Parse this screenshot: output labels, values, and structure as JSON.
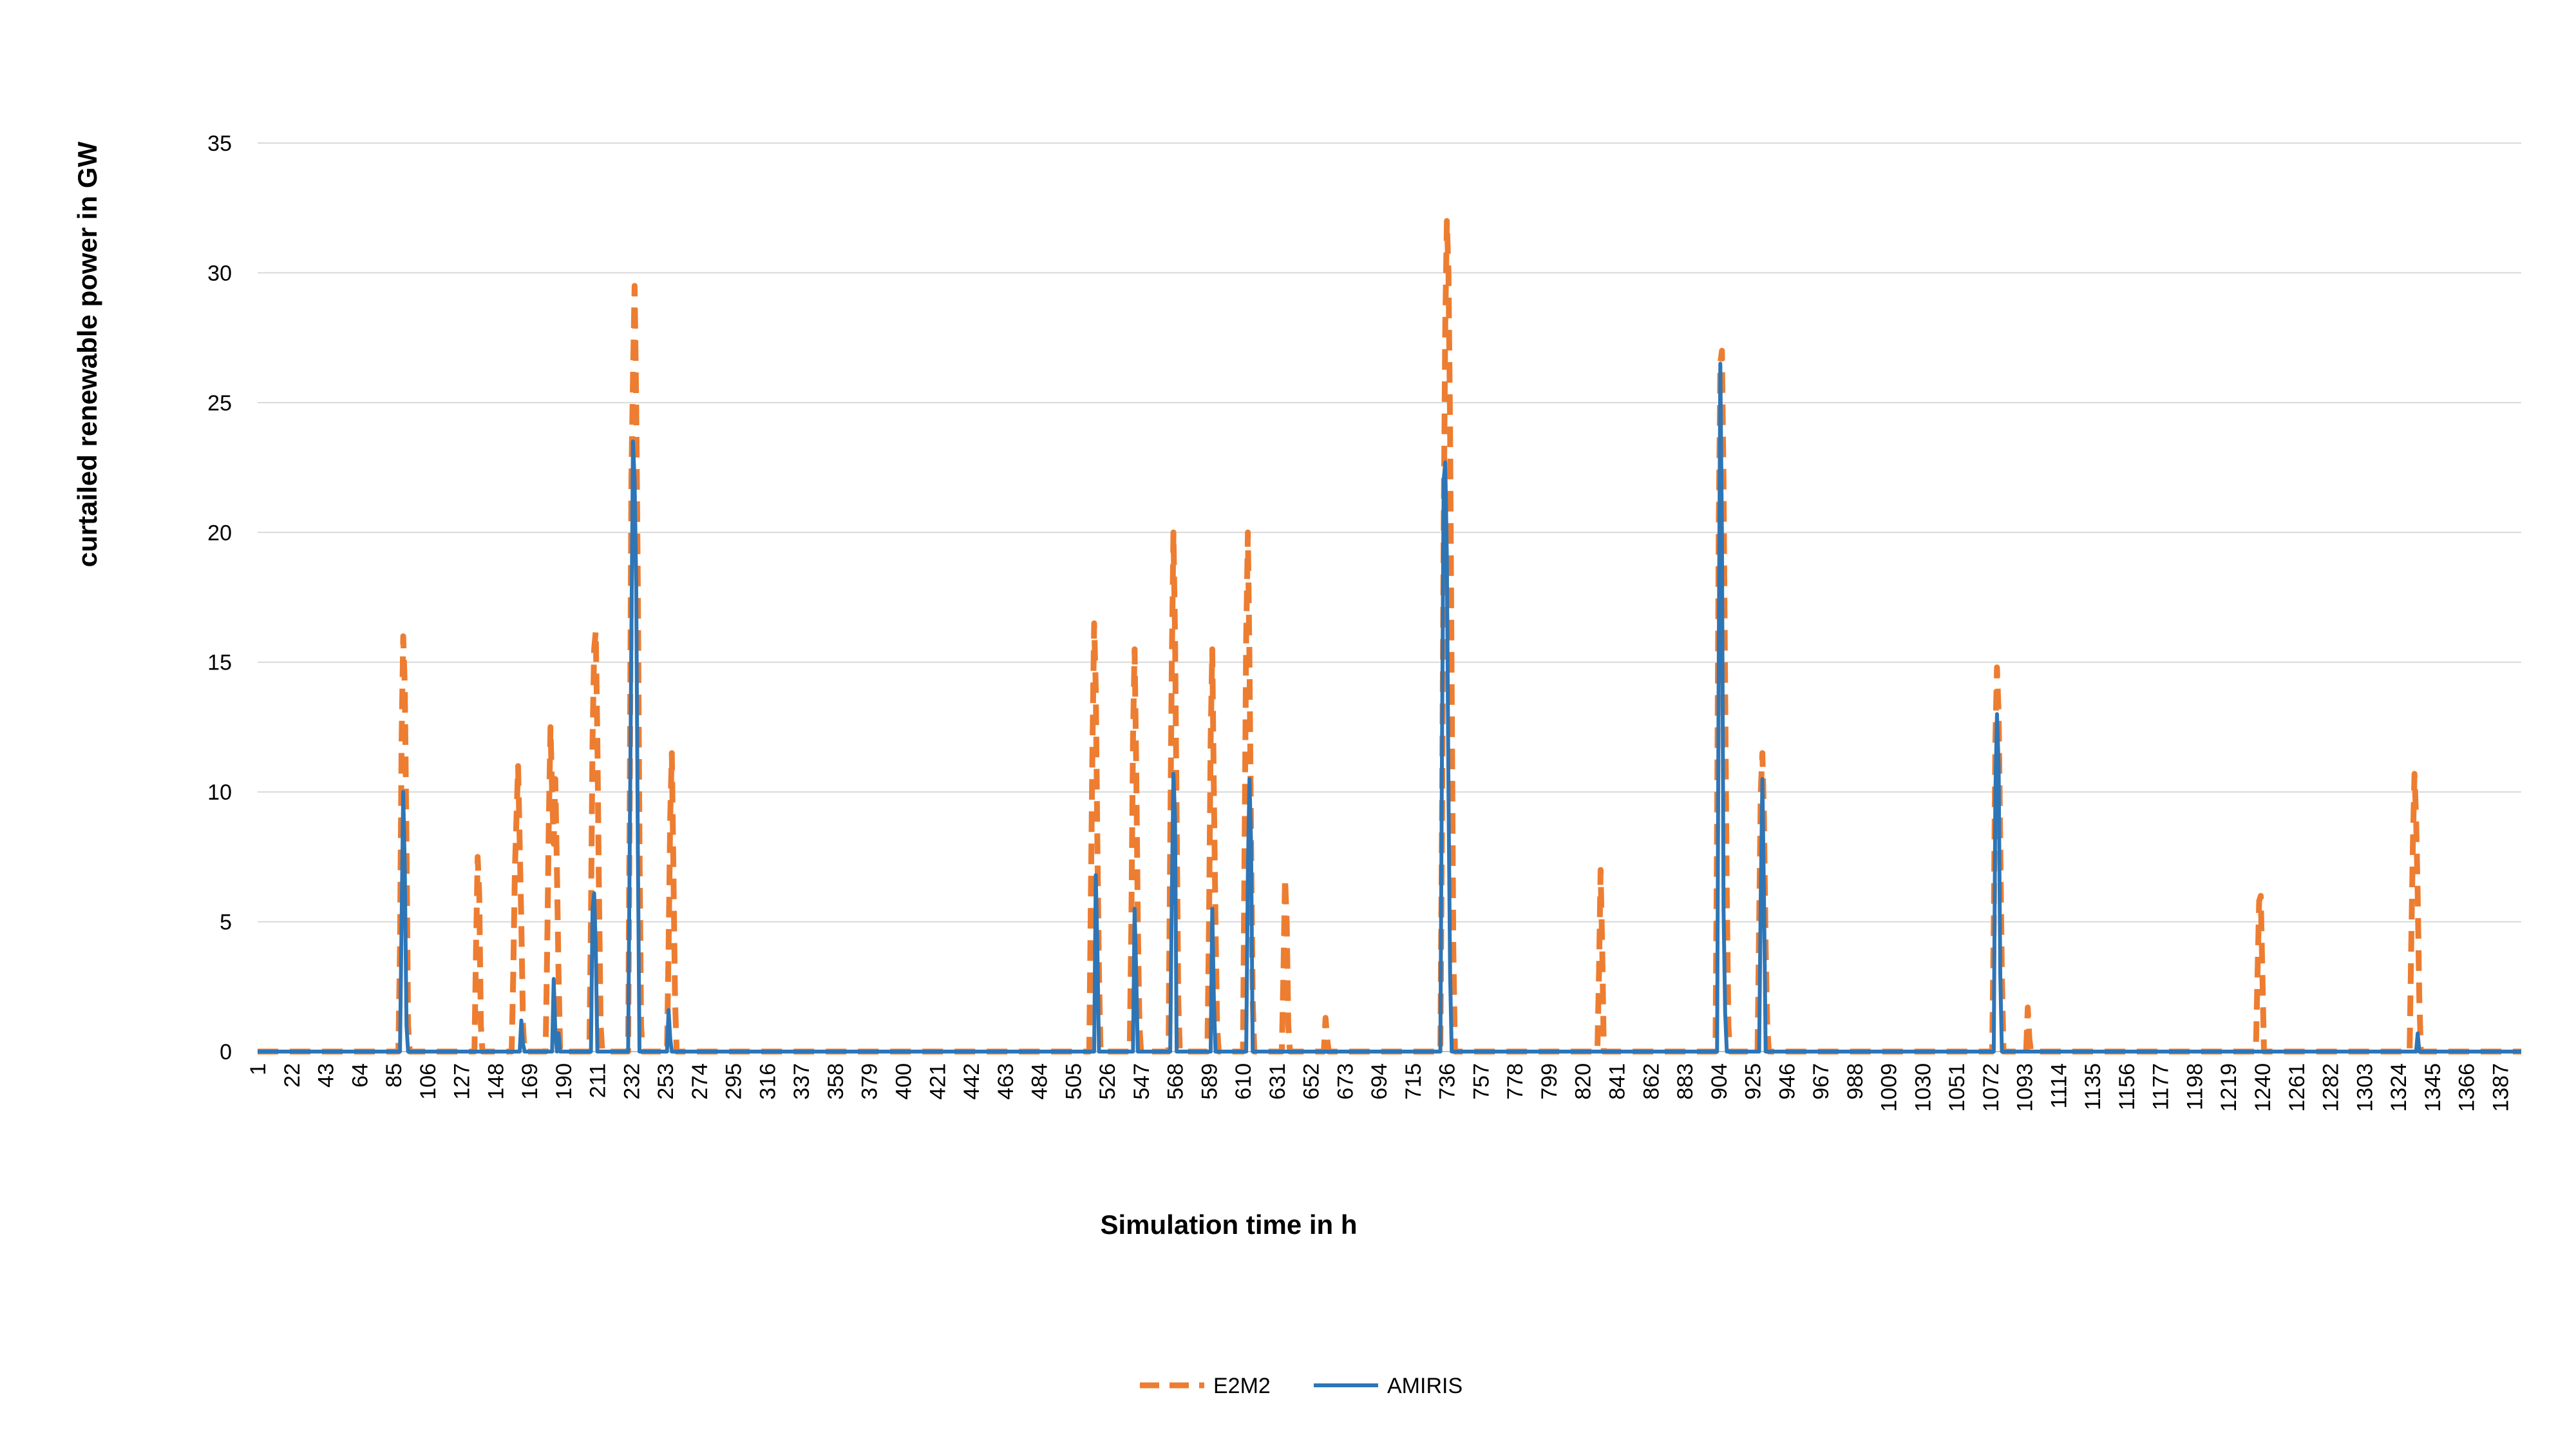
{
  "chart_data": {
    "type": "line",
    "title": "",
    "xlabel": "Simulation time in h",
    "ylabel": "curtailed renewable power in GW",
    "ylim": [
      0,
      35
    ],
    "xlim": [
      1,
      1400
    ],
    "yticks": [
      0,
      5,
      10,
      15,
      20,
      25,
      30,
      35
    ],
    "xticks": [
      1,
      22,
      43,
      64,
      85,
      106,
      127,
      148,
      169,
      190,
      211,
      232,
      253,
      274,
      295,
      316,
      337,
      358,
      379,
      400,
      421,
      442,
      463,
      484,
      505,
      526,
      547,
      568,
      589,
      610,
      631,
      652,
      673,
      694,
      715,
      736,
      757,
      778,
      799,
      820,
      841,
      862,
      883,
      904,
      925,
      946,
      967,
      988,
      1009,
      1030,
      1051,
      1072,
      1093,
      1114,
      1135,
      1156,
      1177,
      1198,
      1219,
      1240,
      1261,
      1282,
      1303,
      1324,
      1345,
      1366,
      1387
    ],
    "grid": true,
    "legend_position": "bottom",
    "series": [
      {
        "name": "E2M2",
        "color": "#ED7D31",
        "style": "dashed",
        "points": [
          [
            1,
            0
          ],
          [
            88,
            0
          ],
          [
            89,
            4
          ],
          [
            90,
            12
          ],
          [
            91,
            16
          ],
          [
            92,
            14
          ],
          [
            93,
            8
          ],
          [
            94,
            1
          ],
          [
            95,
            0
          ],
          [
            135,
            0
          ],
          [
            136,
            4
          ],
          [
            137,
            7.5
          ],
          [
            138,
            6
          ],
          [
            139,
            1
          ],
          [
            140,
            0
          ],
          [
            158,
            0
          ],
          [
            159,
            3
          ],
          [
            160,
            7
          ],
          [
            161,
            9
          ],
          [
            162,
            11
          ],
          [
            163,
            8
          ],
          [
            164,
            5
          ],
          [
            165,
            1
          ],
          [
            166,
            0
          ],
          [
            179,
            0
          ],
          [
            180,
            4
          ],
          [
            181,
            9
          ],
          [
            182,
            12.5
          ],
          [
            183,
            10
          ],
          [
            184,
            8
          ],
          [
            185,
            10.5
          ],
          [
            186,
            7
          ],
          [
            187,
            3
          ],
          [
            188,
            0
          ],
          [
            206,
            0
          ],
          [
            207,
            5
          ],
          [
            208,
            12
          ],
          [
            209,
            15.5
          ],
          [
            210,
            16.2
          ],
          [
            211,
            12
          ],
          [
            212,
            6
          ],
          [
            213,
            1
          ],
          [
            214,
            0
          ],
          [
            230,
            0
          ],
          [
            231,
            10
          ],
          [
            232,
            22
          ],
          [
            233,
            26
          ],
          [
            234,
            29.5
          ],
          [
            235,
            25
          ],
          [
            236,
            18
          ],
          [
            237,
            8
          ],
          [
            238,
            1
          ],
          [
            239,
            0
          ],
          [
            254,
            0
          ],
          [
            255,
            4
          ],
          [
            256,
            9
          ],
          [
            257,
            11.5
          ],
          [
            258,
            7
          ],
          [
            259,
            2
          ],
          [
            260,
            0
          ],
          [
            515,
            0
          ],
          [
            516,
            6
          ],
          [
            517,
            12
          ],
          [
            518,
            16.5
          ],
          [
            519,
            14
          ],
          [
            520,
            8
          ],
          [
            521,
            3
          ],
          [
            522,
            0
          ],
          [
            540,
            0
          ],
          [
            541,
            5
          ],
          [
            542,
            12
          ],
          [
            543,
            15.5
          ],
          [
            544,
            11
          ],
          [
            545,
            5
          ],
          [
            546,
            1
          ],
          [
            547,
            0
          ],
          [
            564,
            0
          ],
          [
            565,
            8
          ],
          [
            566,
            15
          ],
          [
            567,
            20
          ],
          [
            568,
            16
          ],
          [
            569,
            9
          ],
          [
            570,
            2
          ],
          [
            571,
            0
          ],
          [
            588,
            0
          ],
          [
            589,
            5
          ],
          [
            590,
            12
          ],
          [
            591,
            15.5
          ],
          [
            592,
            10
          ],
          [
            593,
            5
          ],
          [
            594,
            1
          ],
          [
            595,
            0
          ],
          [
            610,
            0
          ],
          [
            611,
            8
          ],
          [
            612,
            16
          ],
          [
            613,
            20
          ],
          [
            614,
            15
          ],
          [
            615,
            8
          ],
          [
            616,
            2
          ],
          [
            617,
            0
          ],
          [
            634,
            0
          ],
          [
            635,
            3
          ],
          [
            636,
            6.7
          ],
          [
            637,
            5
          ],
          [
            638,
            1
          ],
          [
            639,
            0
          ],
          [
            660,
            0
          ],
          [
            661,
            1.3
          ],
          [
            662,
            0.5
          ],
          [
            663,
            0
          ],
          [
            732,
            0
          ],
          [
            733,
            9
          ],
          [
            734,
            20
          ],
          [
            735,
            28
          ],
          [
            736,
            32
          ],
          [
            737,
            30
          ],
          [
            738,
            24
          ],
          [
            739,
            14
          ],
          [
            740,
            4
          ],
          [
            741,
            0
          ],
          [
            829,
            0
          ],
          [
            830,
            3
          ],
          [
            831,
            7
          ],
          [
            832,
            4
          ],
          [
            833,
            0
          ],
          [
            902,
            0
          ],
          [
            903,
            9
          ],
          [
            904,
            20
          ],
          [
            905,
            26.5
          ],
          [
            906,
            27
          ],
          [
            907,
            22
          ],
          [
            908,
            14
          ],
          [
            909,
            6
          ],
          [
            910,
            1
          ],
          [
            911,
            0
          ],
          [
            928,
            0
          ],
          [
            929,
            5
          ],
          [
            930,
            10
          ],
          [
            931,
            11.5
          ],
          [
            932,
            9
          ],
          [
            933,
            4
          ],
          [
            934,
            1
          ],
          [
            935,
            0
          ],
          [
            1073,
            0
          ],
          [
            1074,
            5
          ],
          [
            1075,
            12
          ],
          [
            1076,
            14.8
          ],
          [
            1077,
            13
          ],
          [
            1078,
            8
          ],
          [
            1079,
            3
          ],
          [
            1080,
            0
          ],
          [
            1094,
            0
          ],
          [
            1095,
            1.7
          ],
          [
            1096,
            0.5
          ],
          [
            1097,
            0
          ],
          [
            1236,
            0
          ],
          [
            1237,
            3
          ],
          [
            1238,
            5.8
          ],
          [
            1239,
            6
          ],
          [
            1240,
            3
          ],
          [
            1241,
            0
          ],
          [
            1331,
            0
          ],
          [
            1332,
            4
          ],
          [
            1333,
            8
          ],
          [
            1334,
            10.7
          ],
          [
            1335,
            9
          ],
          [
            1336,
            6
          ],
          [
            1337,
            2
          ],
          [
            1338,
            0
          ],
          [
            1400,
            0
          ]
        ]
      },
      {
        "name": "AMIRIS",
        "color": "#2E75B6",
        "style": "solid",
        "points": [
          [
            1,
            0
          ],
          [
            89,
            0
          ],
          [
            90,
            5
          ],
          [
            91,
            10
          ],
          [
            92,
            7
          ],
          [
            93,
            1
          ],
          [
            94,
            0
          ],
          [
            163,
            0
          ],
          [
            164,
            1.2
          ],
          [
            165,
            0.3
          ],
          [
            166,
            0
          ],
          [
            183,
            0
          ],
          [
            184,
            2.8
          ],
          [
            185,
            0.8
          ],
          [
            186,
            0
          ],
          [
            187,
            0.7
          ],
          [
            188,
            0
          ],
          [
            207,
            0
          ],
          [
            208,
            5.5
          ],
          [
            209,
            6.1
          ],
          [
            210,
            4
          ],
          [
            211,
            0
          ],
          [
            230,
            0
          ],
          [
            231,
            8
          ],
          [
            232,
            16
          ],
          [
            233,
            23.5
          ],
          [
            234,
            22
          ],
          [
            235,
            18
          ],
          [
            236,
            8
          ],
          [
            237,
            0
          ],
          [
            254,
            0
          ],
          [
            255,
            1.6
          ],
          [
            256,
            0.5
          ],
          [
            257,
            0
          ],
          [
            518,
            0
          ],
          [
            519,
            6.8
          ],
          [
            520,
            4
          ],
          [
            521,
            0
          ],
          [
            542,
            0
          ],
          [
            543,
            5.5
          ],
          [
            544,
            3
          ],
          [
            545,
            0
          ],
          [
            565,
            0
          ],
          [
            566,
            6
          ],
          [
            567,
            10.7
          ],
          [
            568,
            9
          ],
          [
            569,
            0
          ],
          [
            590,
            0
          ],
          [
            591,
            5.5
          ],
          [
            592,
            2
          ],
          [
            593,
            0
          ],
          [
            612,
            0
          ],
          [
            613,
            7
          ],
          [
            614,
            10.5
          ],
          [
            615,
            8
          ],
          [
            616,
            0
          ],
          [
            732,
            0
          ],
          [
            733,
            12
          ],
          [
            734,
            22
          ],
          [
            735,
            22.7
          ],
          [
            736,
            19
          ],
          [
            737,
            10
          ],
          [
            738,
            3
          ],
          [
            739,
            0
          ],
          [
            903,
            0
          ],
          [
            904,
            15
          ],
          [
            905,
            26.5
          ],
          [
            906,
            20
          ],
          [
            907,
            5.5
          ],
          [
            908,
            1.5
          ],
          [
            909,
            0
          ],
          [
            929,
            0
          ],
          [
            930,
            6
          ],
          [
            931,
            10.5
          ],
          [
            932,
            6
          ],
          [
            933,
            0
          ],
          [
            1074,
            0
          ],
          [
            1075,
            10
          ],
          [
            1076,
            13
          ],
          [
            1077,
            11
          ],
          [
            1078,
            3
          ],
          [
            1079,
            0
          ],
          [
            1335,
            0
          ],
          [
            1336,
            0.7
          ],
          [
            1337,
            0
          ],
          [
            1400,
            0
          ]
        ]
      }
    ]
  }
}
